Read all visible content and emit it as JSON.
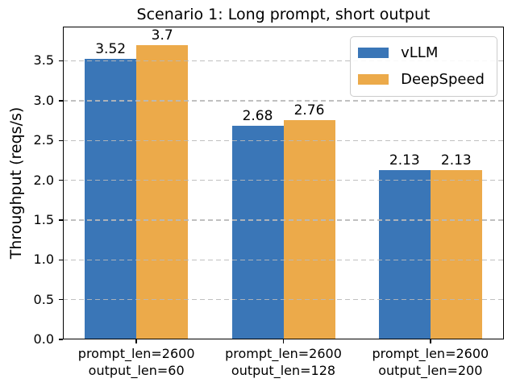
{
  "figure": {
    "title": "Scenario 1: Long prompt, short output",
    "ylabel": "Throughput (reqs/s)"
  },
  "chart_data": {
    "type": "bar",
    "title": "Scenario 1: Long prompt, short output",
    "ylabel": "Throughput (reqs/s)",
    "xlabel": "",
    "categories": [
      [
        "prompt_len=2600",
        "output_len=60"
      ],
      [
        "prompt_len=2600",
        "output_len=128"
      ],
      [
        "prompt_len=2600",
        "output_len=200"
      ]
    ],
    "series": [
      {
        "name": "vLLM",
        "color": "#3a76b7",
        "values": [
          3.52,
          2.68,
          2.13
        ],
        "labels": [
          "3.52",
          "2.68",
          "2.13"
        ]
      },
      {
        "name": "DeepSpeed",
        "color": "#ecaa4a",
        "values": [
          3.7,
          2.76,
          2.13
        ],
        "labels": [
          "3.7",
          "2.76",
          "2.13"
        ]
      }
    ],
    "ylim": [
      0,
      3.93
    ],
    "yticks": [
      0,
      0.5,
      1,
      1.5,
      2,
      2.5,
      3,
      3.5
    ],
    "ytick_labels": [
      "0.0",
      "0.5",
      "1.0",
      "1.5",
      "2.0",
      "2.5",
      "3.0",
      "3.5"
    ],
    "grid": {
      "axis": "y",
      "style": "dashed",
      "color": "#b9b9b9",
      "over_bars": true
    },
    "legend": {
      "position": "upper right",
      "entries": [
        "vLLM",
        "DeepSpeed"
      ]
    },
    "background": "#ffffff"
  }
}
